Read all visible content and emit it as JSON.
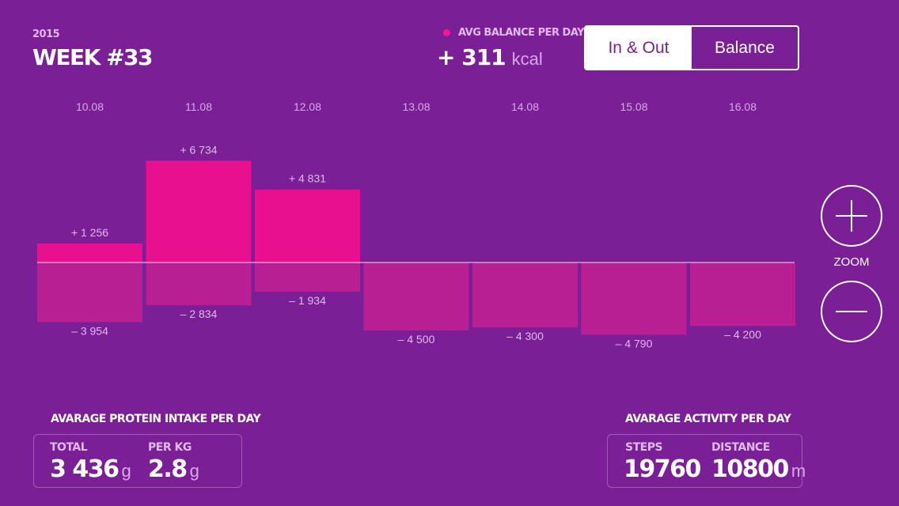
{
  "header": {
    "year": "2015",
    "week": "WEEK #33",
    "avg_label": "AVG BALANCE PER DAY",
    "avg_value": "+ 311",
    "avg_unit": "kcal"
  },
  "toggle": {
    "in_out_label": "In & Out",
    "balance_label": "Balance",
    "selected": "In & Out"
  },
  "zoom": {
    "label": "ZOOM"
  },
  "colors": {
    "background": "#7b1f96",
    "intake_bar": "#e8108f",
    "burn_bar": "#b81f93",
    "accent_dot": "#ff1493"
  },
  "chart_data": {
    "type": "bar",
    "categories": [
      "10.08",
      "11.08",
      "12.08",
      "13.08",
      "14.08",
      "15.08",
      "16.08"
    ],
    "series": [
      {
        "values": [
          1256,
          6734,
          4831,
          0,
          0,
          0,
          0
        ],
        "labels": [
          "+ 1 256",
          "+ 6 734",
          "+ 4 831",
          "",
          "",
          "",
          ""
        ]
      },
      {
        "values": [
          -3954,
          -2834,
          -1934,
          -4500,
          -4300,
          -4790,
          -4200
        ],
        "labels": [
          "– 3 954",
          "– 2 834",
          "– 1 934",
          "– 4 500",
          "– 4 300",
          "– 4 790",
          "– 4 200"
        ]
      }
    ],
    "baseline": 0,
    "grid": false
  },
  "protein": {
    "title": "AVARAGE PROTEIN INTAKE PER DAY",
    "total_label": "TOTAL",
    "total_value": "3 436",
    "total_unit": "g",
    "perkg_label": "PER KG",
    "perkg_value": "2.8",
    "perkg_unit": "g"
  },
  "activity": {
    "title": "AVARAGE ACTIVITY PER DAY",
    "steps_label": "STEPS",
    "steps_value": "19760",
    "distance_label": "DISTANCE",
    "distance_value": "10800",
    "distance_unit": "m"
  }
}
